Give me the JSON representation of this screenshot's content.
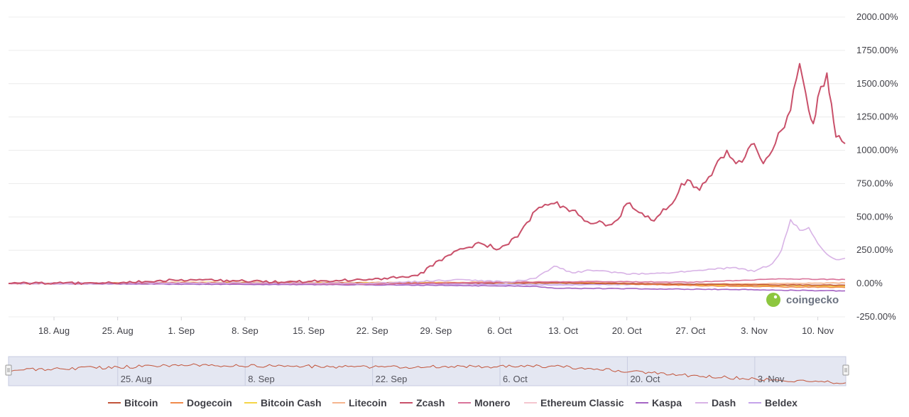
{
  "chart_data": {
    "type": "line",
    "title": "",
    "xlabel": "",
    "ylabel": "",
    "y_unit": "%",
    "ylim": [
      -250,
      2000
    ],
    "y_ticks": [
      2000,
      1750,
      1500,
      1250,
      1000,
      750,
      500,
      250,
      0,
      -250
    ],
    "y_tick_labels": [
      "2000.00%",
      "1750.00%",
      "1500.00%",
      "1250.00%",
      "1000.00%",
      "750.00%",
      "500.00%",
      "250.00%",
      "0.00%",
      "-250.00%"
    ],
    "x_domain": [
      "2025-08-13",
      "2025-11-13"
    ],
    "x_ticks": [
      "2025-08-18",
      "2025-08-25",
      "2025-09-01",
      "2025-09-08",
      "2025-09-15",
      "2025-09-22",
      "2025-09-29",
      "2025-10-06",
      "2025-10-13",
      "2025-10-20",
      "2025-10-27",
      "2025-11-03",
      "2025-11-10"
    ],
    "x_tick_labels": [
      "18. Aug",
      "25. Aug",
      "1. Sep",
      "8. Sep",
      "15. Sep",
      "22. Sep",
      "29. Sep",
      "6. Oct",
      "13. Oct",
      "20. Oct",
      "27. Oct",
      "3. Nov",
      "10. Nov"
    ],
    "grid": true,
    "legend_position": "bottom",
    "series": [
      {
        "name": "Bitcoin",
        "color": "#c2543a",
        "x_days": [
          0,
          20,
          40,
          60,
          75,
          85,
          92
        ],
        "values": [
          0,
          5,
          3,
          4,
          -5,
          -10,
          -12
        ]
      },
      {
        "name": "Dogecoin",
        "color": "#f08a4b",
        "x_days": [
          0,
          20,
          40,
          60,
          75,
          85,
          92
        ],
        "values": [
          0,
          5,
          0,
          10,
          -15,
          -25,
          -30
        ]
      },
      {
        "name": "Bitcoin Cash",
        "color": "#f5d547",
        "x_days": [
          0,
          20,
          40,
          60,
          75,
          85,
          92
        ],
        "values": [
          0,
          8,
          5,
          5,
          -10,
          -15,
          -20
        ]
      },
      {
        "name": "Litecoin",
        "color": "#f6b58e",
        "x_days": [
          0,
          20,
          40,
          60,
          75,
          85,
          92
        ],
        "values": [
          0,
          10,
          8,
          12,
          -5,
          0,
          5
        ]
      },
      {
        "name": "Zcash",
        "color": "#c9506a",
        "x_days": [
          0,
          5,
          10,
          15,
          20,
          25,
          30,
          35,
          40,
          45,
          48,
          50,
          52,
          54,
          56,
          58,
          60,
          61,
          62,
          63,
          64,
          65,
          66,
          67,
          68,
          69,
          70,
          71,
          72,
          73,
          74,
          75,
          76,
          77,
          78,
          79,
          80,
          81,
          82,
          83,
          84,
          85,
          86,
          87,
          88,
          88.5,
          89,
          90,
          90.5,
          91,
          92
        ],
        "values": [
          0,
          5,
          0,
          15,
          30,
          20,
          10,
          20,
          30,
          60,
          200,
          260,
          300,
          260,
          350,
          550,
          600,
          580,
          550,
          500,
          450,
          470,
          440,
          480,
          600,
          550,
          500,
          470,
          560,
          600,
          750,
          770,
          700,
          800,
          920,
          1000,
          900,
          950,
          1050,
          900,
          1000,
          1150,
          1300,
          1650,
          1300,
          1200,
          1400,
          1580,
          1350,
          1100,
          1050
        ]
      },
      {
        "name": "Monero",
        "color": "#d9739a",
        "x_days": [
          0,
          20,
          40,
          55,
          65,
          75,
          85,
          92
        ],
        "values": [
          0,
          5,
          -5,
          10,
          15,
          10,
          35,
          30
        ]
      },
      {
        "name": "Ethereum Classic",
        "color": "#f5c6cf",
        "x_days": [
          0,
          20,
          40,
          60,
          75,
          85,
          92
        ],
        "values": [
          0,
          5,
          0,
          5,
          -10,
          -15,
          -18
        ]
      },
      {
        "name": "Kaspa",
        "color": "#a565c4",
        "x_days": [
          0,
          20,
          40,
          58,
          60,
          70,
          80,
          85,
          92
        ],
        "values": [
          0,
          -5,
          -10,
          -20,
          -35,
          -40,
          -45,
          -50,
          -55
        ]
      },
      {
        "name": "Dash",
        "color": "#d8b3e6",
        "x_days": [
          0,
          20,
          40,
          50,
          55,
          58,
          60,
          62,
          64,
          66,
          68,
          72,
          76,
          80,
          82,
          84,
          85,
          86,
          87,
          88,
          89,
          90,
          91,
          92
        ],
        "values": [
          0,
          5,
          0,
          30,
          10,
          40,
          130,
          80,
          100,
          90,
          70,
          80,
          100,
          120,
          90,
          150,
          250,
          480,
          400,
          420,
          300,
          220,
          180,
          190
        ]
      },
      {
        "name": "Beldex",
        "color": "#c4a3ea",
        "x_days": [
          0,
          20,
          40,
          60,
          75,
          85,
          92
        ],
        "values": [
          0,
          -5,
          0,
          -10,
          -5,
          -15,
          -20
        ]
      }
    ]
  },
  "navigator": {
    "labels": [
      "25. Aug",
      "8. Sep",
      "22. Sep",
      "6. Oct",
      "20. Oct",
      "3. Nov"
    ],
    "label_dates": [
      "2025-08-25",
      "2025-09-08",
      "2025-09-22",
      "2025-10-06",
      "2025-10-20",
      "2025-11-03"
    ]
  },
  "brand": {
    "name": "coingecko",
    "logo_color": "#8dc63f"
  }
}
